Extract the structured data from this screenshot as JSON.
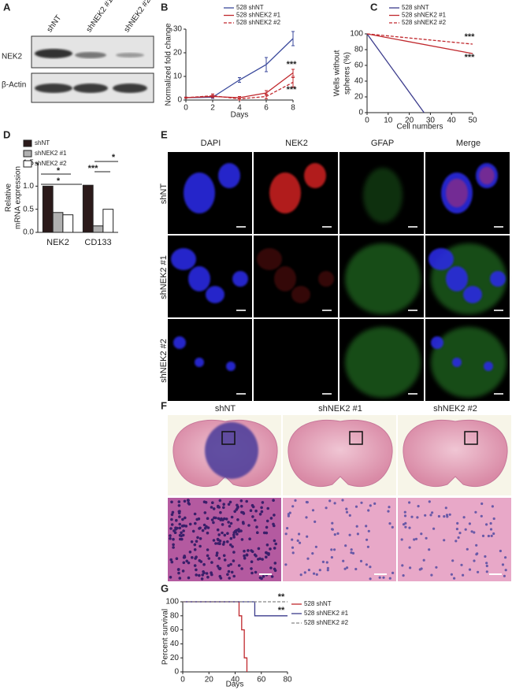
{
  "panel_a": {
    "letter": "A",
    "lanes": [
      "shNT",
      "shNEK2 #1",
      "shNEK2 #2"
    ],
    "bands": [
      "NEK2",
      "β-Actin"
    ]
  },
  "chart_data": [
    {
      "type": "line",
      "label": "B",
      "ylabel": [
        "Normalized fold change"
      ],
      "xlabel": "Days",
      "x": [
        0,
        2,
        4,
        6,
        8
      ],
      "xlim": [
        0,
        8
      ],
      "xticks": [
        0,
        2,
        4,
        6,
        8
      ],
      "ylim": [
        0,
        30
      ],
      "yticks": [
        0,
        10,
        20,
        30
      ],
      "series": [
        {
          "name": "528 shNT",
          "color": "#3b4a9c",
          "values": [
            1,
            1.2,
            8.5,
            15,
            26
          ],
          "errors": [
            0.2,
            0.5,
            1,
            3,
            3
          ]
        },
        {
          "name": "528 shNEK2 #1",
          "color": "#c0282d",
          "values": [
            1,
            1.5,
            1,
            3,
            11.5
          ],
          "errors": [
            0.2,
            0.5,
            0.5,
            1,
            1.5
          ]
        },
        {
          "name": "528 shNEK2 #2",
          "color": "#c0282d",
          "dash": true,
          "values": [
            1,
            1.8,
            0.5,
            1.5,
            7.5
          ],
          "errors": [
            0.2,
            0.8,
            0.5,
            1,
            2
          ]
        }
      ],
      "annotations": [
        "***",
        "***"
      ]
    },
    {
      "type": "line",
      "label": "C",
      "ylabel": [
        "Wells without",
        "spheres (%)"
      ],
      "xlabel": "Cell numbers",
      "xlim": [
        0,
        50
      ],
      "xticks": [
        0,
        10,
        20,
        30,
        40,
        50
      ],
      "ylim": [
        0,
        100
      ],
      "yticks": [
        0,
        20,
        40,
        60,
        80,
        100
      ],
      "series": [
        {
          "name": "528 shNT",
          "color": "#3b3b8c",
          "x": [
            0,
            27
          ],
          "values": [
            100,
            0
          ]
        },
        {
          "name": "528 shNEK2 #1",
          "color": "#c0282d",
          "x": [
            0,
            50
          ],
          "values": [
            100,
            75
          ]
        },
        {
          "name": "528 shNEK2 #2",
          "color": "#c0282d",
          "dash": true,
          "x": [
            0,
            50
          ],
          "values": [
            100,
            87
          ]
        }
      ],
      "annotations": [
        "***",
        "***"
      ]
    },
    {
      "type": "bar",
      "label": "D",
      "ylabel": [
        "Relative",
        "mRNA expression"
      ],
      "categories": [
        "NEK2",
        "CD133"
      ],
      "ylim": [
        0,
        1.5
      ],
      "yticks": [
        {
          "value": 0,
          "label": "0.0"
        },
        0.5,
        {
          "value": 1,
          "label": "1.0"
        },
        1.5
      ],
      "series": [
        {
          "name": "shNT",
          "color": "#2b1a1a",
          "values": [
            1.0,
            1.02
          ]
        },
        {
          "name": "shNEK2 #1",
          "color": "#b0b0b0",
          "values": [
            0.43,
            0.14
          ]
        },
        {
          "name": "shNEK2 #2",
          "color": "#ffffff",
          "values": [
            0.38,
            0.5
          ]
        }
      ],
      "annotations": [
        "*",
        "*",
        "*",
        "***"
      ]
    },
    {
      "type": "line",
      "label": "G",
      "ylabel": [
        "Percent survival"
      ],
      "xlabel": "Days",
      "xlim": [
        0,
        80
      ],
      "xticks": [
        0,
        20,
        40,
        60,
        80
      ],
      "ylim": [
        0,
        100
      ],
      "yticks": [
        0,
        20,
        40,
        60,
        80,
        100
      ],
      "series": [
        {
          "name": "528 shNT",
          "color": "#c0282d",
          "x": [
            0,
            43,
            43,
            45,
            45,
            47,
            47,
            49,
            49
          ],
          "values": [
            100,
            100,
            80,
            80,
            60,
            60,
            20,
            20,
            0
          ]
        },
        {
          "name": "528 shNEK2 #1",
          "color": "#3b3b8c",
          "x": [
            0,
            55,
            55,
            80
          ],
          "values": [
            100,
            100,
            80,
            80
          ]
        },
        {
          "name": "528 shNEK2 #2",
          "color": "#888888",
          "dash": true,
          "x": [
            0,
            80
          ],
          "values": [
            100,
            100
          ]
        }
      ],
      "annotations": [
        "**",
        "**"
      ]
    }
  ],
  "panel_e": {
    "letter": "E",
    "columns": [
      "DAPI",
      "NEK2",
      "GFAP",
      "Merge"
    ],
    "column_colors": [
      "#2a2ad0",
      "#d02020",
      "#30a030",
      "#c030c0"
    ],
    "rows": [
      "shNT",
      "shNEK2 #1",
      "shNEK2 #2"
    ]
  },
  "panel_f": {
    "letter": "F",
    "columns": [
      "shNT",
      "shNEK2 #1",
      "shNEK2 #2"
    ]
  }
}
